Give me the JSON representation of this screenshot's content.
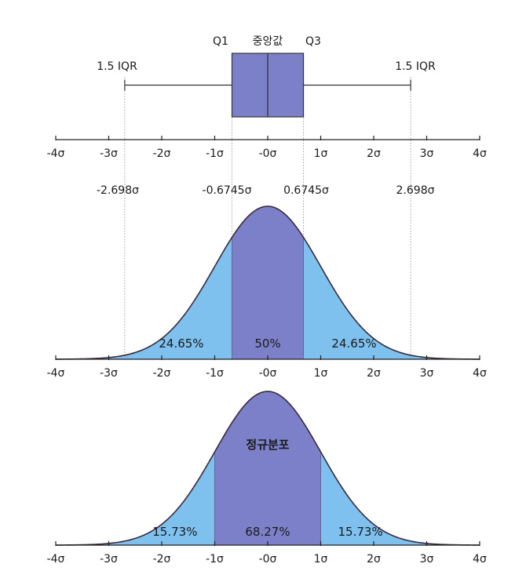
{
  "chart_data": [
    {
      "type": "box",
      "labels": {
        "q1": "Q1",
        "median": "중앙값",
        "q3": "Q3",
        "left_whisker": "1.5 IQR",
        "right_whisker": "1.5 IQR"
      },
      "q1": -0.6745,
      "median": 0,
      "q3": 0.6745,
      "whisker_low": -2.698,
      "whisker_high": 2.698,
      "xlim": [
        -4,
        4
      ],
      "ticks": [
        "-4σ",
        "-3σ",
        "-2σ",
        "-1σ",
        "-0σ",
        "1σ",
        "2σ",
        "3σ",
        "4σ"
      ],
      "color": "#7b80c8"
    },
    {
      "type": "area",
      "annotations": [
        "-2.698σ",
        "-0.6745σ",
        "0.6745σ",
        "2.698σ"
      ],
      "boundaries": [
        -2.698,
        -0.6745,
        0.6745,
        2.698
      ],
      "regions": [
        {
          "from": -0.6745,
          "to": 0.6745,
          "label": "50%",
          "color": "#7b80c8"
        },
        {
          "from": -4,
          "to": -0.6745,
          "label": "24.65%",
          "color": "#7ec0ee"
        },
        {
          "from": 0.6745,
          "to": 4,
          "label": "24.65%",
          "color": "#7ec0ee"
        }
      ],
      "xlim": [
        -4,
        4
      ],
      "ticks": [
        "-4σ",
        "-3σ",
        "-2σ",
        "-1σ",
        "-0σ",
        "1σ",
        "2σ",
        "3σ",
        "4σ"
      ]
    },
    {
      "type": "area",
      "title": "정규분포",
      "regions": [
        {
          "from": -1,
          "to": 1,
          "label": "68.27%",
          "color": "#7b80c8"
        },
        {
          "from": -4,
          "to": -1,
          "label": "15.73%",
          "color": "#7ec0ee"
        },
        {
          "from": 1,
          "to": 4,
          "label": "15.73%",
          "color": "#7ec0ee"
        }
      ],
      "xlim": [
        -4,
        4
      ],
      "ticks": [
        "-4σ",
        "-3σ",
        "-2σ",
        "-1σ",
        "-0σ",
        "1σ",
        "2σ",
        "3σ",
        "4σ"
      ]
    }
  ]
}
